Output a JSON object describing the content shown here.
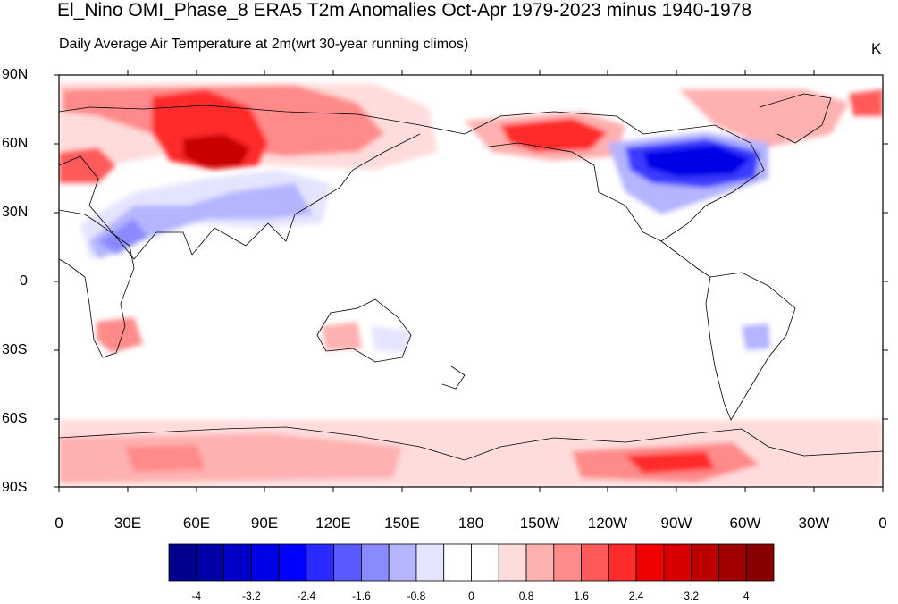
{
  "title": "El_Nino OMI_Phase_8 ERA5 T2m Anomalies Oct-Apr 1979-2023 minus 1940-1978",
  "subtitle": "Daily Average Air Temperature at 2m",
  "subtitle_note": "(wrt 30-year running climos)",
  "units": "K",
  "lat_labels": [
    "90N",
    "60N",
    "30N",
    "0",
    "30S",
    "60S",
    "90S"
  ],
  "lon_labels": [
    "0",
    "30E",
    "60E",
    "90E",
    "120E",
    "150E",
    "180",
    "150W",
    "120W",
    "90W",
    "60W",
    "30W",
    "0"
  ],
  "colorbar": {
    "labels": [
      "-4",
      "-3.2",
      "-2.4",
      "-1.6",
      "-0.8",
      "0",
      "0.8",
      "1.6",
      "2.4",
      "3.2",
      "4"
    ],
    "colors": [
      "#00008c",
      "#0000a8",
      "#0000c8",
      "#0000e6",
      "#0000ff",
      "#2a2aff",
      "#5a5aff",
      "#8a8aff",
      "#b4b4ff",
      "#e4e4ff",
      "#ffffff",
      "#ffffff",
      "#ffdcdc",
      "#ffb0b0",
      "#ff8a8a",
      "#ff5a5a",
      "#ff2a2a",
      "#f00000",
      "#d80000",
      "#bb0000",
      "#a00000",
      "#880000"
    ]
  }
}
